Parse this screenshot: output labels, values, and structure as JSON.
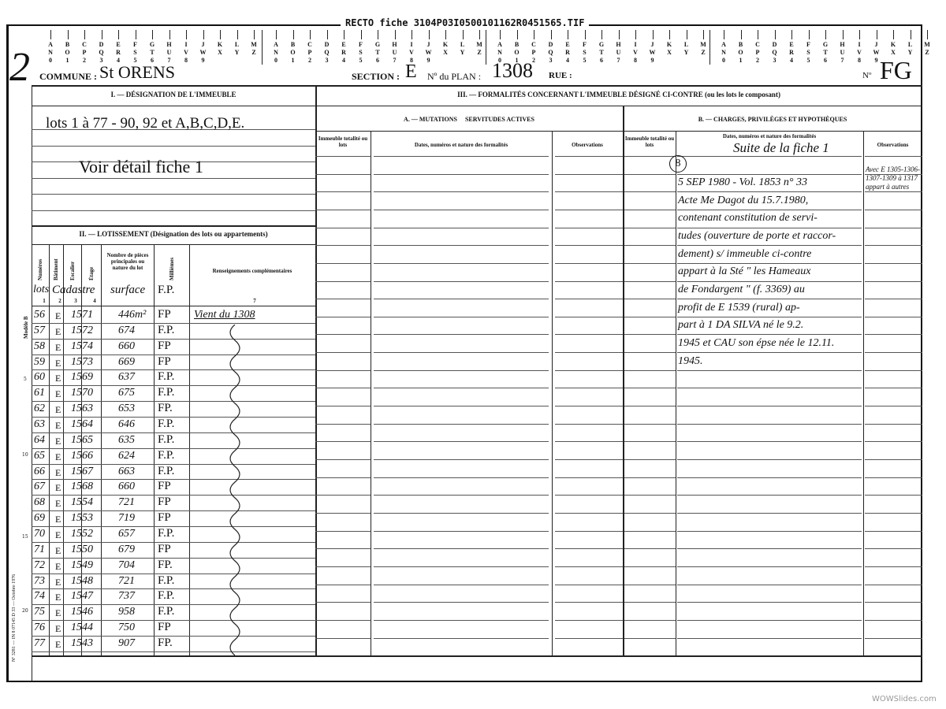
{
  "file_title": "RECTO fiche 3104P03I0500101162R0451565.TIF",
  "index_strip": {
    "row1": [
      "A",
      "B",
      "C",
      "D",
      "E",
      "F",
      "G",
      "H",
      "I",
      "J",
      "K",
      "L",
      "M"
    ],
    "row2": [
      "N",
      "O",
      "P",
      "Q",
      "R",
      "S",
      "T",
      "U",
      "V",
      "W",
      "X",
      "Y",
      "Z"
    ],
    "row3": [
      "0",
      "1",
      "2",
      "3",
      "4",
      "5",
      "6",
      "7",
      "8",
      "9"
    ]
  },
  "margin_number": "2",
  "header": {
    "commune_label": "COMMUNE :",
    "commune_value": "St ORENS",
    "section_label": "SECTION :",
    "section_value": "E",
    "plan_label": "Nº du PLAN :",
    "plan_value": "1308",
    "rue_label": "RUE :",
    "no_label": "Nº",
    "no_value": "FG"
  },
  "section1": {
    "title": "I. — DÉSIGNATION DE L'IMMEUBLE",
    "line1": "lots 1 à 77 - 90, 92 et A,B,C,D,E.",
    "line2": "Voir détail fiche 1"
  },
  "section2": {
    "title": "II. — LOTISSEMENT (Désignation des lots ou appartements)",
    "col_headers": [
      "Numéros",
      "Bâtiment",
      "Escalier",
      "Étage",
      "Nombre de pièces principales ou nature du lot",
      "Millièmes",
      "Renseignements complémentaires"
    ],
    "col_numbers": [
      "1",
      "2",
      "3",
      "4",
      "5",
      "6",
      "7"
    ],
    "handwritten_headers": {
      "lot": "lots",
      "cadastre": "Cadastre",
      "surface": "surface",
      "fp": "F.P."
    },
    "rows": [
      {
        "lot": "56",
        "section": "E",
        "parcel": "1571",
        "surface": "446m²",
        "fp": "FP",
        "note": "Vient du 1308"
      },
      {
        "lot": "57",
        "section": "E",
        "parcel": "1572",
        "surface": "674",
        "fp": "F.P."
      },
      {
        "lot": "58",
        "section": "E",
        "parcel": "1574",
        "surface": "660",
        "fp": "FP"
      },
      {
        "lot": "59",
        "section": "E",
        "parcel": "1573",
        "surface": "669",
        "fp": "FP"
      },
      {
        "lot": "60",
        "section": "E",
        "parcel": "1569",
        "surface": "637",
        "fp": "F.P."
      },
      {
        "lot": "61",
        "section": "E",
        "parcel": "1570",
        "surface": "675",
        "fp": "F.P."
      },
      {
        "lot": "62",
        "section": "E",
        "parcel": "1563",
        "surface": "653",
        "fp": "FP."
      },
      {
        "lot": "63",
        "section": "E",
        "parcel": "1564",
        "surface": "646",
        "fp": "F.P."
      },
      {
        "lot": "64",
        "section": "E",
        "parcel": "1565",
        "surface": "635",
        "fp": "F.P."
      },
      {
        "lot": "65",
        "section": "E",
        "parcel": "1566",
        "surface": "624",
        "fp": "F.P."
      },
      {
        "lot": "66",
        "section": "E",
        "parcel": "1567",
        "surface": "663",
        "fp": "F.P."
      },
      {
        "lot": "67",
        "section": "E",
        "parcel": "1568",
        "surface": "660",
        "fp": "FP"
      },
      {
        "lot": "68",
        "section": "E",
        "parcel": "1554",
        "surface": "721",
        "fp": "FP"
      },
      {
        "lot": "69",
        "section": "E",
        "parcel": "1553",
        "surface": "719",
        "fp": "FP"
      },
      {
        "lot": "70",
        "section": "E",
        "parcel": "1552",
        "surface": "657",
        "fp": "F.P."
      },
      {
        "lot": "71",
        "section": "E",
        "parcel": "1550",
        "surface": "679",
        "fp": "FP"
      },
      {
        "lot": "72",
        "section": "E",
        "parcel": "1549",
        "surface": "704",
        "fp": "FP."
      },
      {
        "lot": "73",
        "section": "E",
        "parcel": "1548",
        "surface": "721",
        "fp": "F.P."
      },
      {
        "lot": "74",
        "section": "E",
        "parcel": "1547",
        "surface": "737",
        "fp": "F.P."
      },
      {
        "lot": "75",
        "section": "E",
        "parcel": "1546",
        "surface": "958",
        "fp": "F.P."
      },
      {
        "lot": "76",
        "section": "E",
        "parcel": "1544",
        "surface": "750",
        "fp": "FP"
      },
      {
        "lot": "77",
        "section": "E",
        "parcel": "1543",
        "surface": "907",
        "fp": "FP."
      }
    ]
  },
  "side_text": {
    "model": "Modèle B",
    "form": "Nº 3281 — IN 8 07145 D 33 — Octobre 1976",
    "line_numbers": [
      "5",
      "10",
      "15",
      "20"
    ]
  },
  "section3": {
    "title": "III. — FORMALITÉS CONCERNANT L'IMMEUBLE DÉSIGNÉ CI-CONTRE (ou les lots le composant)",
    "a": {
      "title": "A. — MUTATIONS     SERVITUDES ACTIVES",
      "col_headers": [
        "Immeuble totalité ou lots",
        "Dates, numéros et nature des formalités",
        "Observations"
      ]
    },
    "b": {
      "title": "B. — CHARGES, PRIVILÈGES ET HYPOTHÈQUES",
      "col_headers": [
        "Immeuble totalité ou lots",
        "Dates, numéros et nature des formalités",
        "Observations"
      ],
      "header_note": "Suite de la fiche 1",
      "entry_number": "8",
      "entry_lines": [
        "5 SEP 1980 - Vol. 1853 n° 33",
        "Acte Me Dagot du 15.7.1980,",
        "contenant constitution de servi-",
        "tudes (ouverture de porte et raccor-",
        "dement) s/ immeuble ci-contre",
        "appart à la Sté \" les Hameaux",
        "de Fondargent \" (f. 3369) au",
        "profit de E 1539 (rural) ap-",
        "part à 1 DA SILVA né le 9.2.",
        "1945 et CAU son épse née le 12.11.",
        "1945."
      ],
      "observation_lines": [
        "Avec E 1305-1306-",
        "1307-1309 à 1317",
        "appart à autres"
      ]
    }
  },
  "watermark": "WOWSlides.com"
}
